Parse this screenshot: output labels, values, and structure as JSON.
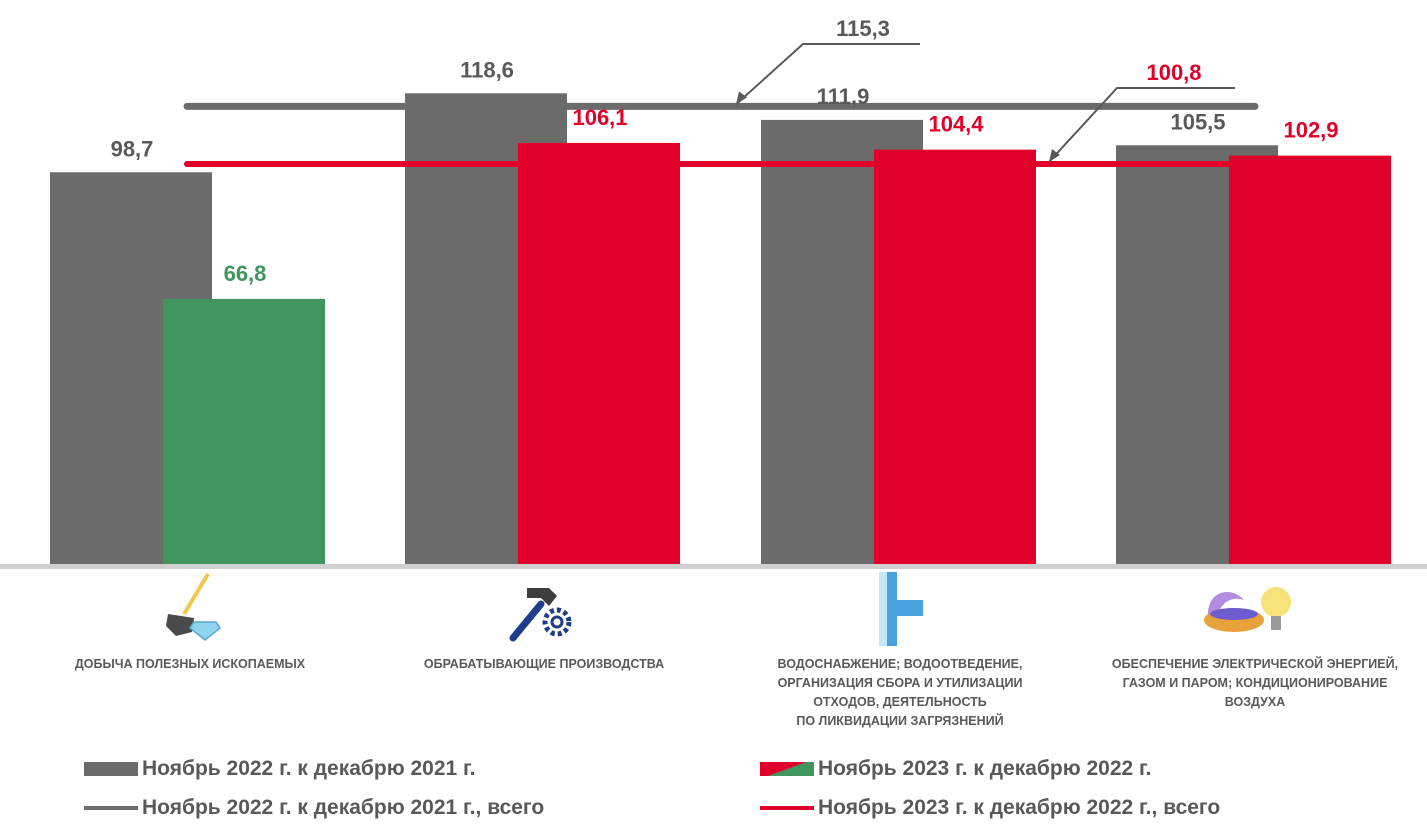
{
  "chart_data": {
    "type": "bar",
    "categories": [
      {
        "lines": [
          "Добыча полезных ископаемых"
        ],
        "icon": "shovel-diamond-icon"
      },
      {
        "lines": [
          "Обрабатывающие производства"
        ],
        "icon": "hammer-gear-icon"
      },
      {
        "lines": [
          "Водоснабжение; водоотведение,",
          "организация сбора и утилизации",
          "отходов, деятельность",
          "по ликвидации загрязнений"
        ],
        "icon": "water-pipe-icon"
      },
      {
        "lines": [
          "Обеспечение электрической энергией,",
          "газом и паром; кондиционирование",
          "воздуха"
        ],
        "icon": "gas-flame-bulb-icon"
      }
    ],
    "series": [
      {
        "name": "Ноябрь 2022 г. к декабрю 2021 г.",
        "values": [
          98.7,
          118.6,
          111.9,
          105.5
        ],
        "labels": [
          "98,7",
          "118,6",
          "111,9",
          "105,5"
        ],
        "color": "#6b6b6b"
      },
      {
        "name": "Ноябрь 2023 г. к декабрю 2022 г.",
        "values": [
          66.8,
          106.1,
          104.4,
          102.9
        ],
        "labels": [
          "66,8",
          "106,1",
          "104,4",
          "102,9"
        ],
        "colors": [
          "#41955f",
          "#e0002a",
          "#e0002a",
          "#e0002a"
        ]
      }
    ],
    "reference_lines": [
      {
        "name": "Ноябрь 2022 г. к декабрю 2021 г., всего",
        "value": 115.3,
        "label": "115,3",
        "color": "#6b6b6b"
      },
      {
        "name": "Ноябрь 2023 г. к декабрю 2022 г., всего",
        "value": 100.8,
        "label": "100,8",
        "color": "#e0002a"
      }
    ],
    "ylim": [
      0,
      128
    ],
    "label_colors": {
      "gray": "#595959",
      "red": "#e0002a",
      "green": "#41955f"
    }
  },
  "legend": {
    "bar_2022": "Ноябрь 2022 г. к декабрю 2021 г.",
    "bar_2023": "Ноябрь 2023 г. к декабрю 2022 г.",
    "line_2022": "Ноябрь 2022 г. к декабрю 2021 г., всего",
    "line_2023": "Ноябрь 2023 г. к декабрю 2022 г., всего"
  }
}
